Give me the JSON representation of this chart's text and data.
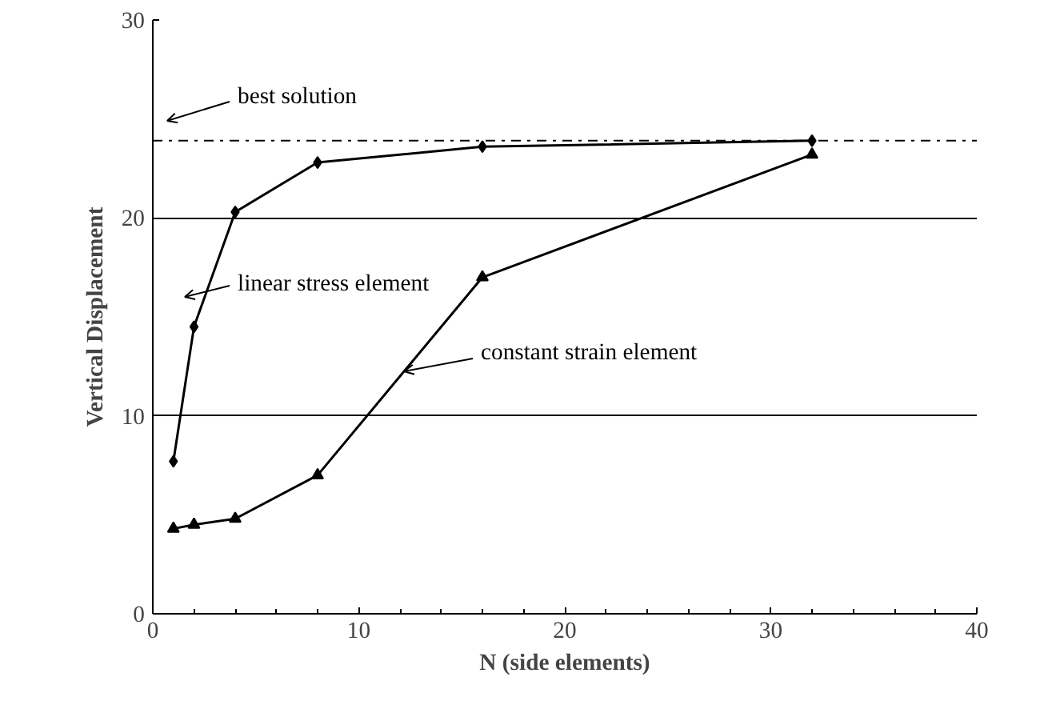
{
  "chart_data": {
    "type": "line",
    "xlabel": "N (side elements)",
    "ylabel": "Vertical Displacement",
    "xlim": [
      0,
      40
    ],
    "xticks": [
      0,
      10,
      20,
      30,
      40
    ],
    "ylim": [
      0,
      30
    ],
    "yticks": [
      0,
      10,
      20,
      30
    ],
    "grid": "y",
    "line_style": "solid",
    "series": [
      {
        "color": "#000000",
        "marker": "diamond",
        "x": [
          1,
          2,
          4,
          8,
          16,
          32
        ],
        "values": [
          7.7,
          14.5,
          20.3,
          22.8,
          23.6,
          23.9
        ]
      },
      {
        "color": "#000000",
        "marker": "triangle",
        "x": [
          1,
          2,
          4,
          8,
          16,
          32
        ],
        "values": [
          4.3,
          4.5,
          4.8,
          7.0,
          17.0,
          23.2
        ]
      }
    ],
    "ref_lines": [
      {
        "axis": "y",
        "value": 23.9,
        "line_style": "dashdot",
        "color": "#000000"
      }
    ],
    "annotations": [
      "best solution",
      "linear stress element",
      {
        "text": "constant strain element",
        "x": 12.2,
        "y": 12.25
      }
    ]
  }
}
